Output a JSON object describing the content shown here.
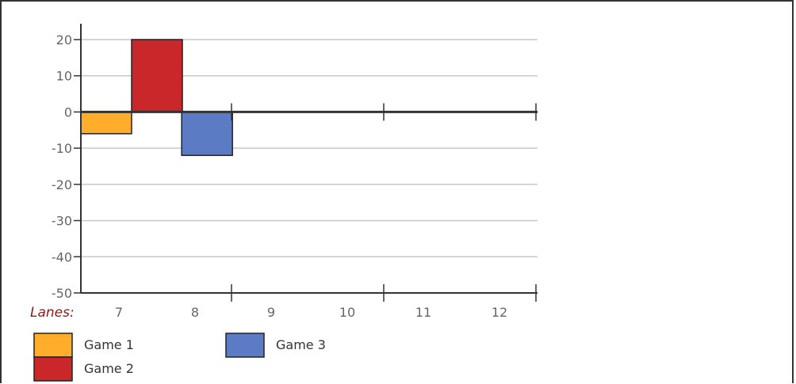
{
  "chart_data": {
    "type": "bar",
    "title": "",
    "xlabel": "Lanes:",
    "ylabel": "",
    "categories": [
      "7",
      "8",
      "9",
      "10",
      "11",
      "12"
    ],
    "ylim": [
      -50,
      20
    ],
    "yticks": [
      20,
      10,
      0,
      -10,
      -20,
      -30,
      -40,
      -50
    ],
    "grid": true,
    "legend_position": "bottom-left",
    "series": [
      {
        "name": "Game 1",
        "color": "#ffad2a",
        "values": [
          -6,
          null,
          null,
          null,
          null,
          null
        ]
      },
      {
        "name": "Game 2",
        "color": "#c9272a",
        "values": [
          20,
          null,
          null,
          null,
          null,
          null
        ]
      },
      {
        "name": "Game 3",
        "color": "#5b7bc4",
        "values": [
          null,
          -12,
          null,
          null,
          null,
          null
        ]
      }
    ]
  }
}
